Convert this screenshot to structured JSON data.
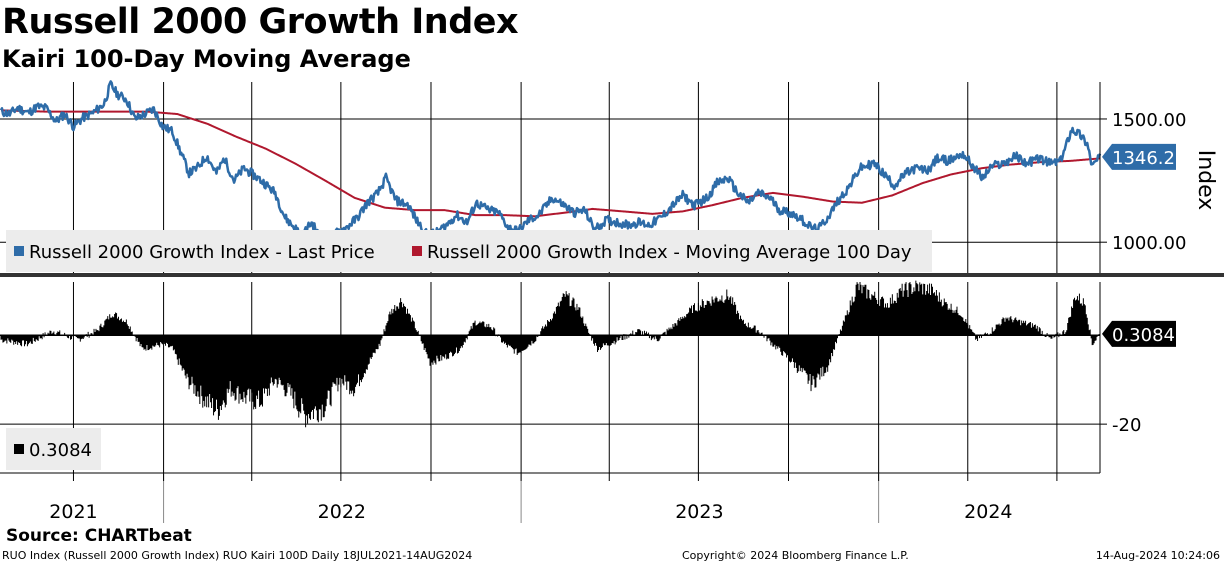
{
  "title": "Russell 2000 Growth Index",
  "subtitle": "Kairi 100-Day Moving Average",
  "source": "Source: CHARTbeat",
  "footer": {
    "left": "RUO Index (Russell 2000 Growth Index) RUO Kairi 100D  Daily 18JUL2021-14AUG2024",
    "center": "Copyright© 2024 Bloomberg Finance L.P.",
    "right": "14-Aug-2024 10:24:06"
  },
  "chart_data": [
    {
      "type": "line",
      "panel": "upper",
      "ylabel": "Index",
      "yticks": [
        1000,
        1500
      ],
      "ytick_labels": [
        "1000.00",
        "1500.00"
      ],
      "ylim": [
        875,
        1650
      ],
      "xlim": [
        "2021-07-18",
        "2024-08-14"
      ],
      "last_value_label": "1346.27",
      "legend": [
        {
          "name": "Russell 2000 Growth Index - Last Price",
          "color": "#2e6ca8"
        },
        {
          "name": "Russell 2000 Growth Index - Moving Average 100 Day",
          "color": "#b0182e"
        }
      ],
      "series": [
        {
          "name": "Russell 2000 Growth Index - Last Price",
          "color": "#2e6ca8",
          "points": [
            [
              "2021-07-19",
              1530
            ],
            [
              "2021-07-28",
              1520
            ],
            [
              "2021-08-05",
              1545
            ],
            [
              "2021-08-16",
              1525
            ],
            [
              "2021-08-25",
              1550
            ],
            [
              "2021-09-03",
              1545
            ],
            [
              "2021-09-13",
              1490
            ],
            [
              "2021-09-22",
              1520
            ],
            [
              "2021-10-01",
              1470
            ],
            [
              "2021-10-11",
              1505
            ],
            [
              "2021-10-21",
              1525
            ],
            [
              "2021-11-01",
              1560
            ],
            [
              "2021-11-08",
              1640
            ],
            [
              "2021-11-15",
              1600
            ],
            [
              "2021-11-24",
              1580
            ],
            [
              "2021-12-03",
              1500
            ],
            [
              "2021-12-13",
              1520
            ],
            [
              "2021-12-22",
              1540
            ],
            [
              "2021-12-31",
              1470
            ],
            [
              "2022-01-10",
              1450
            ],
            [
              "2022-01-19",
              1360
            ],
            [
              "2022-01-27",
              1280
            ],
            [
              "2022-02-04",
              1300
            ],
            [
              "2022-02-14",
              1350
            ],
            [
              "2022-02-24",
              1280
            ],
            [
              "2022-03-04",
              1340
            ],
            [
              "2022-03-14",
              1250
            ],
            [
              "2022-03-24",
              1300
            ],
            [
              "2022-04-04",
              1270
            ],
            [
              "2022-04-14",
              1240
            ],
            [
              "2022-04-25",
              1200
            ],
            [
              "2022-05-05",
              1100
            ],
            [
              "2022-05-12",
              1070
            ],
            [
              "2022-05-23",
              1030
            ],
            [
              "2022-06-01",
              1080
            ],
            [
              "2022-06-10",
              1020
            ],
            [
              "2022-06-16",
              970
            ],
            [
              "2022-06-27",
              1040
            ],
            [
              "2022-07-07",
              1060
            ],
            [
              "2022-07-18",
              1100
            ],
            [
              "2022-07-28",
              1160
            ],
            [
              "2022-08-08",
              1200
            ],
            [
              "2022-08-16",
              1260
            ],
            [
              "2022-08-26",
              1170
            ],
            [
              "2022-09-08",
              1150
            ],
            [
              "2022-09-16",
              1090
            ],
            [
              "2022-09-27",
              1030
            ],
            [
              "2022-10-07",
              1040
            ],
            [
              "2022-10-17",
              1070
            ],
            [
              "2022-10-27",
              1110
            ],
            [
              "2022-11-07",
              1080
            ],
            [
              "2022-11-16",
              1160
            ],
            [
              "2022-11-29",
              1130
            ],
            [
              "2022-12-09",
              1120
            ],
            [
              "2022-12-19",
              1060
            ],
            [
              "2022-12-29",
              1045
            ],
            [
              "2023-01-09",
              1090
            ],
            [
              "2023-01-19",
              1110
            ],
            [
              "2023-02-02",
              1180
            ],
            [
              "2023-02-14",
              1150
            ],
            [
              "2023-02-24",
              1120
            ],
            [
              "2023-03-07",
              1130
            ],
            [
              "2023-03-17",
              1050
            ],
            [
              "2023-03-29",
              1090
            ],
            [
              "2023-04-10",
              1080
            ],
            [
              "2023-04-20",
              1070
            ],
            [
              "2023-05-01",
              1080
            ],
            [
              "2023-05-12",
              1070
            ],
            [
              "2023-05-24",
              1100
            ],
            [
              "2023-06-05",
              1150
            ],
            [
              "2023-06-15",
              1190
            ],
            [
              "2023-06-27",
              1150
            ],
            [
              "2023-07-10",
              1180
            ],
            [
              "2023-07-20",
              1240
            ],
            [
              "2023-07-31",
              1260
            ],
            [
              "2023-08-10",
              1200
            ],
            [
              "2023-08-21",
              1160
            ],
            [
              "2023-08-31",
              1200
            ],
            [
              "2023-09-12",
              1180
            ],
            [
              "2023-09-22",
              1130
            ],
            [
              "2023-10-02",
              1120
            ],
            [
              "2023-10-12",
              1100
            ],
            [
              "2023-10-24",
              1060
            ],
            [
              "2023-10-31",
              1050
            ],
            [
              "2023-11-10",
              1100
            ],
            [
              "2023-11-21",
              1170
            ],
            [
              "2023-12-01",
              1220
            ],
            [
              "2023-12-13",
              1300
            ],
            [
              "2023-12-27",
              1320
            ],
            [
              "2024-01-08",
              1270
            ],
            [
              "2024-01-17",
              1230
            ],
            [
              "2024-01-29",
              1280
            ],
            [
              "2024-02-08",
              1300
            ],
            [
              "2024-02-20",
              1290
            ],
            [
              "2024-03-01",
              1340
            ],
            [
              "2024-03-13",
              1330
            ],
            [
              "2024-03-27",
              1360
            ],
            [
              "2024-04-08",
              1300
            ],
            [
              "2024-04-16",
              1260
            ],
            [
              "2024-04-26",
              1310
            ],
            [
              "2024-05-08",
              1320
            ],
            [
              "2024-05-20",
              1350
            ],
            [
              "2024-05-31",
              1320
            ],
            [
              "2024-06-12",
              1340
            ],
            [
              "2024-06-24",
              1320
            ],
            [
              "2024-07-05",
              1330
            ],
            [
              "2024-07-16",
              1460
            ],
            [
              "2024-07-24",
              1440
            ],
            [
              "2024-08-01",
              1400
            ],
            [
              "2024-08-06",
              1310
            ],
            [
              "2024-08-14",
              1346.27
            ]
          ]
        },
        {
          "name": "Russell 2000 Growth Index - Moving Average 100 Day",
          "color": "#b0182e",
          "points": [
            [
              "2021-07-19",
              1535
            ],
            [
              "2021-09-01",
              1530
            ],
            [
              "2021-11-01",
              1530
            ],
            [
              "2021-12-15",
              1530
            ],
            [
              "2022-01-15",
              1520
            ],
            [
              "2022-02-15",
              1480
            ],
            [
              "2022-03-15",
              1430
            ],
            [
              "2022-04-15",
              1380
            ],
            [
              "2022-05-15",
              1320
            ],
            [
              "2022-06-15",
              1250
            ],
            [
              "2022-07-15",
              1180
            ],
            [
              "2022-08-15",
              1140
            ],
            [
              "2022-09-15",
              1130
            ],
            [
              "2022-10-15",
              1130
            ],
            [
              "2022-11-15",
              1110
            ],
            [
              "2022-12-15",
              1110
            ],
            [
              "2023-01-15",
              1105
            ],
            [
              "2023-02-15",
              1120
            ],
            [
              "2023-03-15",
              1135
            ],
            [
              "2023-04-15",
              1125
            ],
            [
              "2023-05-15",
              1115
            ],
            [
              "2023-06-15",
              1125
            ],
            [
              "2023-07-15",
              1150
            ],
            [
              "2023-08-15",
              1180
            ],
            [
              "2023-09-15",
              1200
            ],
            [
              "2023-10-15",
              1185
            ],
            [
              "2023-11-15",
              1165
            ],
            [
              "2023-12-15",
              1160
            ],
            [
              "2024-01-15",
              1190
            ],
            [
              "2024-02-15",
              1240
            ],
            [
              "2024-03-15",
              1275
            ],
            [
              "2024-04-15",
              1300
            ],
            [
              "2024-05-15",
              1315
            ],
            [
              "2024-06-15",
              1325
            ],
            [
              "2024-07-15",
              1330
            ],
            [
              "2024-08-14",
              1340
            ]
          ]
        }
      ]
    },
    {
      "type": "bar",
      "panel": "lower",
      "yticks": [
        -20
      ],
      "ytick_labels": [
        "-20"
      ],
      "ylim": [
        -31,
        12
      ],
      "xlim": [
        "2021-07-18",
        "2024-08-14"
      ],
      "last_value_label": "0.3084",
      "legend": [
        {
          "name": "0.3084",
          "color": "#000000"
        }
      ],
      "series": [
        {
          "name": "0.3084",
          "color": "#000000",
          "points": [
            [
              "2021-07-19",
              -1
            ],
            [
              "2021-08-15",
              -2
            ],
            [
              "2021-09-10",
              1
            ],
            [
              "2021-10-05",
              -1
            ],
            [
              "2021-10-25",
              1
            ],
            [
              "2021-11-10",
              5
            ],
            [
              "2021-11-25",
              3
            ],
            [
              "2021-12-10",
              -3
            ],
            [
              "2021-12-31",
              -2
            ],
            [
              "2022-01-10",
              -3
            ],
            [
              "2022-01-25",
              -10
            ],
            [
              "2022-02-10",
              -14
            ],
            [
              "2022-02-25",
              -17
            ],
            [
              "2022-03-10",
              -12
            ],
            [
              "2022-03-25",
              -14
            ],
            [
              "2022-04-10",
              -15
            ],
            [
              "2022-04-25",
              -10
            ],
            [
              "2022-05-10",
              -13
            ],
            [
              "2022-05-25",
              -18
            ],
            [
              "2022-06-15",
              -16
            ],
            [
              "2022-06-30",
              -10
            ],
            [
              "2022-07-15",
              -12
            ],
            [
              "2022-07-30",
              -6
            ],
            [
              "2022-08-10",
              -2
            ],
            [
              "2022-08-20",
              5
            ],
            [
              "2022-09-01",
              8
            ],
            [
              "2022-09-15",
              2
            ],
            [
              "2022-09-30",
              -6
            ],
            [
              "2022-10-15",
              -5
            ],
            [
              "2022-10-31",
              -3
            ],
            [
              "2022-11-15",
              3
            ],
            [
              "2022-12-01",
              2
            ],
            [
              "2022-12-15",
              -2
            ],
            [
              "2022-12-29",
              -4
            ],
            [
              "2023-01-15",
              -1
            ],
            [
              "2023-02-01",
              4
            ],
            [
              "2023-02-15",
              9
            ],
            [
              "2023-03-01",
              6
            ],
            [
              "2023-03-10",
              1
            ],
            [
              "2023-03-20",
              -3
            ],
            [
              "2023-04-10",
              -1
            ],
            [
              "2023-05-01",
              1
            ],
            [
              "2023-05-20",
              -1
            ],
            [
              "2023-06-10",
              3
            ],
            [
              "2023-06-25",
              6
            ],
            [
              "2023-07-15",
              8
            ],
            [
              "2023-08-01",
              9
            ],
            [
              "2023-08-15",
              3
            ],
            [
              "2023-09-01",
              1
            ],
            [
              "2023-09-15",
              -2
            ],
            [
              "2023-10-05",
              -6
            ],
            [
              "2023-10-25",
              -11
            ],
            [
              "2023-11-10",
              -7
            ],
            [
              "2023-11-25",
              2
            ],
            [
              "2023-12-10",
              11
            ],
            [
              "2023-12-25",
              9
            ],
            [
              "2024-01-10",
              7
            ],
            [
              "2024-01-25",
              10
            ],
            [
              "2024-02-10",
              11
            ],
            [
              "2024-02-25",
              10
            ],
            [
              "2024-03-10",
              7
            ],
            [
              "2024-03-25",
              5
            ],
            [
              "2024-04-10",
              -1
            ],
            [
              "2024-04-25",
              1
            ],
            [
              "2024-05-10",
              4
            ],
            [
              "2024-05-25",
              3
            ],
            [
              "2024-06-10",
              2
            ],
            [
              "2024-06-25",
              -1
            ],
            [
              "2024-07-10",
              1
            ],
            [
              "2024-07-20",
              9
            ],
            [
              "2024-07-30",
              7
            ],
            [
              "2024-08-06",
              -2
            ],
            [
              "2024-08-14",
              0.3084
            ]
          ]
        }
      ]
    }
  ],
  "x_axis": {
    "year_labels": [
      {
        "label": "2021",
        "date": "2021-10-01"
      },
      {
        "label": "2022",
        "date": "2022-07-02"
      },
      {
        "label": "2023",
        "date": "2023-07-02"
      },
      {
        "label": "2024",
        "date": "2024-04-22"
      }
    ],
    "year_boundaries": [
      "2022-01-01",
      "2023-01-01",
      "2024-01-01"
    ],
    "grid_dates": [
      "2021-10-01",
      "2022-01-01",
      "2022-04-01",
      "2022-07-01",
      "2022-10-01",
      "2023-01-01",
      "2023-04-01",
      "2023-07-01",
      "2023-10-01",
      "2024-01-01",
      "2024-04-01",
      "2024-07-01"
    ]
  },
  "colors": {
    "price": "#2e6ca8",
    "moving_average": "#b0182e",
    "kairi": "#000000",
    "legend_background": "#ececec",
    "divider": "#333333"
  }
}
